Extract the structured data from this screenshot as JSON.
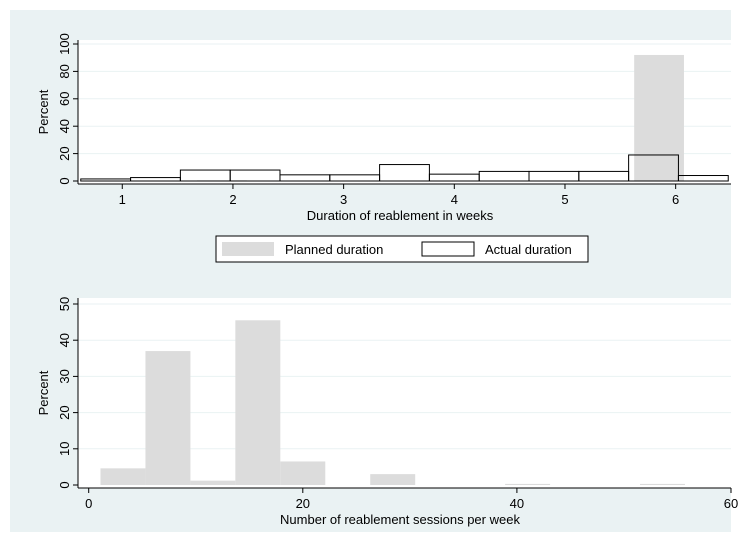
{
  "chart_data": [
    {
      "type": "bar",
      "xlabel": "Duration of reablement in weeks",
      "ylabel": "Percent",
      "xlim": [
        0.6,
        6.5
      ],
      "ylim": [
        0,
        100
      ],
      "xticks": [
        1,
        2,
        3,
        4,
        5,
        6
      ],
      "yticks": [
        0,
        20,
        40,
        60,
        80,
        100
      ],
      "bin_width": 0.45,
      "grid": true,
      "legend": {
        "placement": "bottom",
        "entries": [
          "Planned duration",
          "Actual duration"
        ]
      },
      "colors": {
        "planned": "#dcdcdc",
        "actual_outline": "#000000",
        "grid": "#eaf2f3",
        "panel": "#ffffff",
        "background": "#eaf2f3"
      },
      "series": [
        {
          "name": "Planned duration",
          "style": "filled",
          "x": [
            1.9,
            5.85
          ],
          "values": [
            0.5,
            92
          ]
        },
        {
          "name": "Actual duration",
          "style": "outline",
          "x": [
            0.85,
            1.3,
            1.75,
            2.2,
            2.65,
            3.1,
            3.55,
            4.0,
            4.45,
            4.9,
            5.35,
            5.8,
            6.25
          ],
          "values": [
            1.5,
            2.5,
            8,
            8,
            4.5,
            4.5,
            12,
            5,
            7,
            7,
            7,
            19,
            4
          ]
        }
      ]
    },
    {
      "type": "bar",
      "xlabel": "Number of reablement sessions per week",
      "ylabel": "Percent",
      "xlim": [
        -1,
        60
      ],
      "ylim": [
        0,
        50
      ],
      "xticks": [
        0,
        20,
        40,
        60
      ],
      "yticks": [
        0,
        10,
        20,
        30,
        40,
        50
      ],
      "bin_width": 4.2,
      "grid": true,
      "colors": {
        "bars": "#dcdcdc",
        "panel": "#ffffff"
      },
      "series": [
        {
          "name": "",
          "x": [
            3.2,
            7.4,
            11.6,
            15.8,
            20.0,
            24.2,
            28.4,
            32.6,
            36.8,
            41.0,
            45.2,
            49.4,
            53.6
          ],
          "values": [
            4.6,
            37,
            1.2,
            45.5,
            6.5,
            0,
            3,
            0,
            0,
            0.3,
            0,
            0,
            0.3
          ]
        }
      ]
    }
  ]
}
